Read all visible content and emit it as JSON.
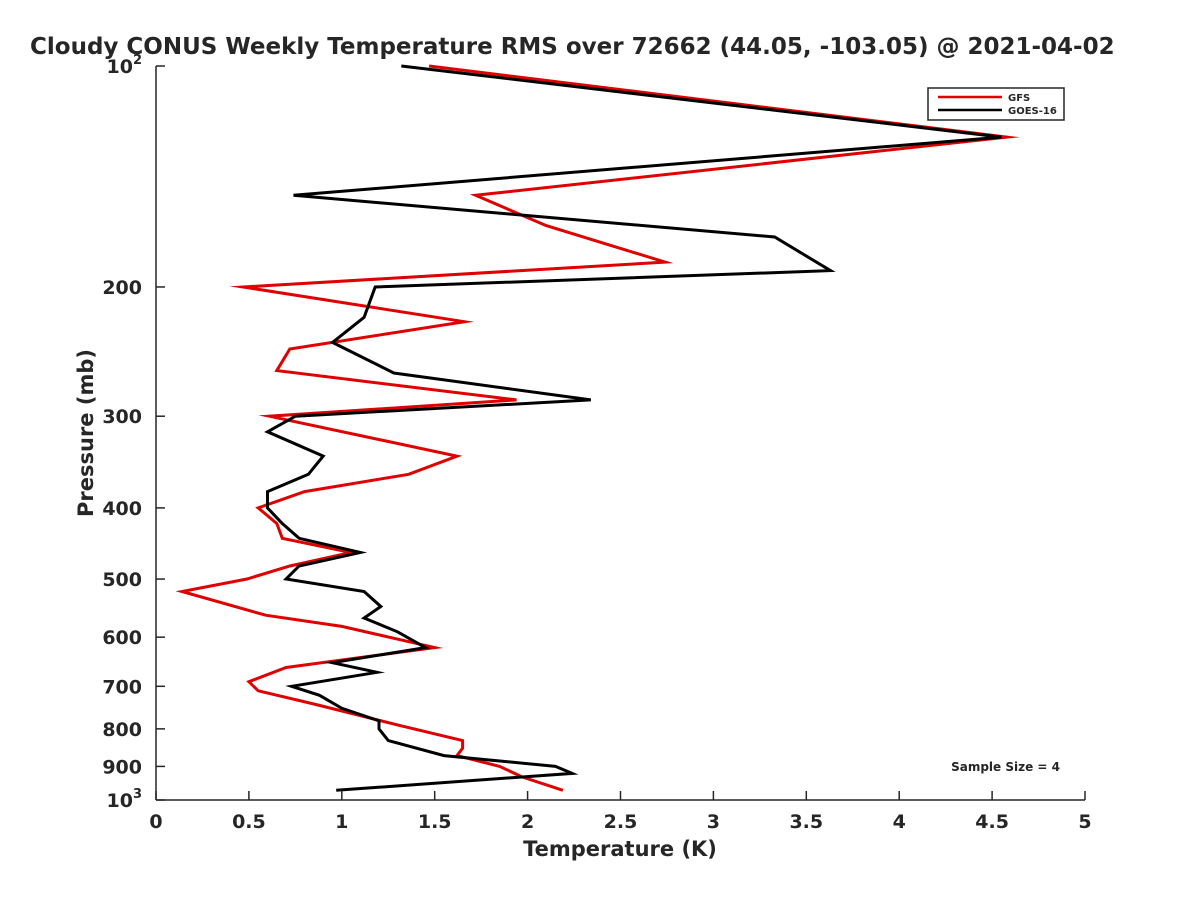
{
  "chart_data": {
    "type": "line",
    "title": "Cloudy CONUS Weekly Temperature RMS over 72662 (44.05, -103.05) @ 2021-04-02",
    "xlabel": "Temperature (K)",
    "ylabel": "Pressure (mb)",
    "xlim": [
      0,
      5
    ],
    "ylim": [
      100,
      1000
    ],
    "y_scale": "log",
    "y_reversed": true,
    "grid": false,
    "legend_position": "top-right",
    "x_ticks": [
      "0",
      "0.5",
      "1",
      "1.5",
      "2",
      "2.5",
      "3",
      "3.5",
      "4",
      "4.5",
      "5"
    ],
    "y_ticks": [
      {
        "value": 100,
        "base": "10",
        "exp": "2"
      },
      {
        "value": 200,
        "label": "200"
      },
      {
        "value": 300,
        "label": "300"
      },
      {
        "value": 400,
        "label": "400"
      },
      {
        "value": 500,
        "label": "500"
      },
      {
        "value": 600,
        "label": "600"
      },
      {
        "value": 700,
        "label": "700"
      },
      {
        "value": 800,
        "label": "800"
      },
      {
        "value": 900,
        "label": "900"
      },
      {
        "value": 1000,
        "base": "10",
        "exp": "3"
      }
    ],
    "annotation": "Sample Size = 4",
    "series": [
      {
        "name": "GFS",
        "color": "#e00000",
        "points": [
          [
            1.47,
            100
          ],
          [
            4.58,
            125
          ],
          [
            1.72,
            150
          ],
          [
            2.1,
            165
          ],
          [
            2.74,
            185
          ],
          [
            0.47,
            200
          ],
          [
            1.66,
            223
          ],
          [
            0.72,
            243
          ],
          [
            0.65,
            260
          ],
          [
            1.94,
            285
          ],
          [
            0.61,
            300
          ],
          [
            1.62,
            340
          ],
          [
            1.36,
            360
          ],
          [
            0.8,
            380
          ],
          [
            0.55,
            400
          ],
          [
            0.65,
            420
          ],
          [
            0.68,
            440
          ],
          [
            1.05,
            460
          ],
          [
            0.72,
            480
          ],
          [
            0.49,
            500
          ],
          [
            0.14,
            520
          ],
          [
            0.59,
            560
          ],
          [
            1.0,
            580
          ],
          [
            1.5,
            620
          ],
          [
            0.7,
            660
          ],
          [
            0.5,
            690
          ],
          [
            0.55,
            710
          ],
          [
            0.85,
            740
          ],
          [
            1.3,
            790
          ],
          [
            1.65,
            830
          ],
          [
            1.65,
            850
          ],
          [
            1.62,
            870
          ],
          [
            1.85,
            900
          ],
          [
            1.97,
            930
          ],
          [
            2.19,
            970
          ]
        ]
      },
      {
        "name": "GOES-16",
        "color": "#000000",
        "points": [
          [
            1.32,
            100
          ],
          [
            4.55,
            125
          ],
          [
            0.74,
            150
          ],
          [
            3.33,
            171
          ],
          [
            3.63,
            190
          ],
          [
            1.18,
            200
          ],
          [
            1.12,
            220
          ],
          [
            0.95,
            238
          ],
          [
            1.28,
            262
          ],
          [
            2.34,
            285
          ],
          [
            0.75,
            300
          ],
          [
            0.6,
            315
          ],
          [
            0.9,
            340
          ],
          [
            0.82,
            360
          ],
          [
            0.6,
            380
          ],
          [
            0.6,
            400
          ],
          [
            0.68,
            420
          ],
          [
            0.77,
            440
          ],
          [
            1.1,
            460
          ],
          [
            0.77,
            480
          ],
          [
            0.7,
            500
          ],
          [
            1.12,
            520
          ],
          [
            1.21,
            545
          ],
          [
            1.12,
            565
          ],
          [
            1.3,
            590
          ],
          [
            1.45,
            620
          ],
          [
            0.95,
            650
          ],
          [
            1.19,
            670
          ],
          [
            0.73,
            700
          ],
          [
            0.88,
            720
          ],
          [
            1.0,
            750
          ],
          [
            1.2,
            780
          ],
          [
            1.2,
            800
          ],
          [
            1.25,
            830
          ],
          [
            1.55,
            870
          ],
          [
            2.15,
            900
          ],
          [
            2.24,
            920
          ],
          [
            0.97,
            970
          ]
        ]
      }
    ]
  }
}
